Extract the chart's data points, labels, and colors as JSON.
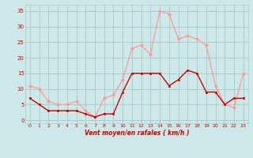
{
  "hours": [
    0,
    1,
    2,
    3,
    4,
    5,
    6,
    7,
    8,
    9,
    10,
    11,
    12,
    13,
    14,
    15,
    16,
    17,
    18,
    19,
    20,
    21,
    22,
    23
  ],
  "vent_moyen": [
    7,
    5,
    3,
    3,
    3,
    3,
    2,
    1,
    2,
    2,
    9,
    15,
    15,
    15,
    15,
    11,
    13,
    16,
    15,
    9,
    9,
    5,
    7,
    7
  ],
  "rafales": [
    11,
    10,
    6,
    5,
    5,
    6,
    3,
    1,
    7,
    8,
    13,
    23,
    24,
    21,
    35,
    34,
    26,
    27,
    26,
    24,
    11,
    5,
    4,
    15
  ],
  "bg_color": "#cce8e8",
  "grid_color": "#aacccc",
  "line_color_moyen": "#cc0000",
  "line_color_rafales": "#ff9999",
  "xlabel": "Vent moyen/en rafales ( km/h )",
  "ylabel_ticks": [
    0,
    5,
    10,
    15,
    20,
    25,
    30,
    35
  ],
  "ylim": [
    -1,
    37
  ],
  "xlim": [
    -0.5,
    23.5
  ]
}
